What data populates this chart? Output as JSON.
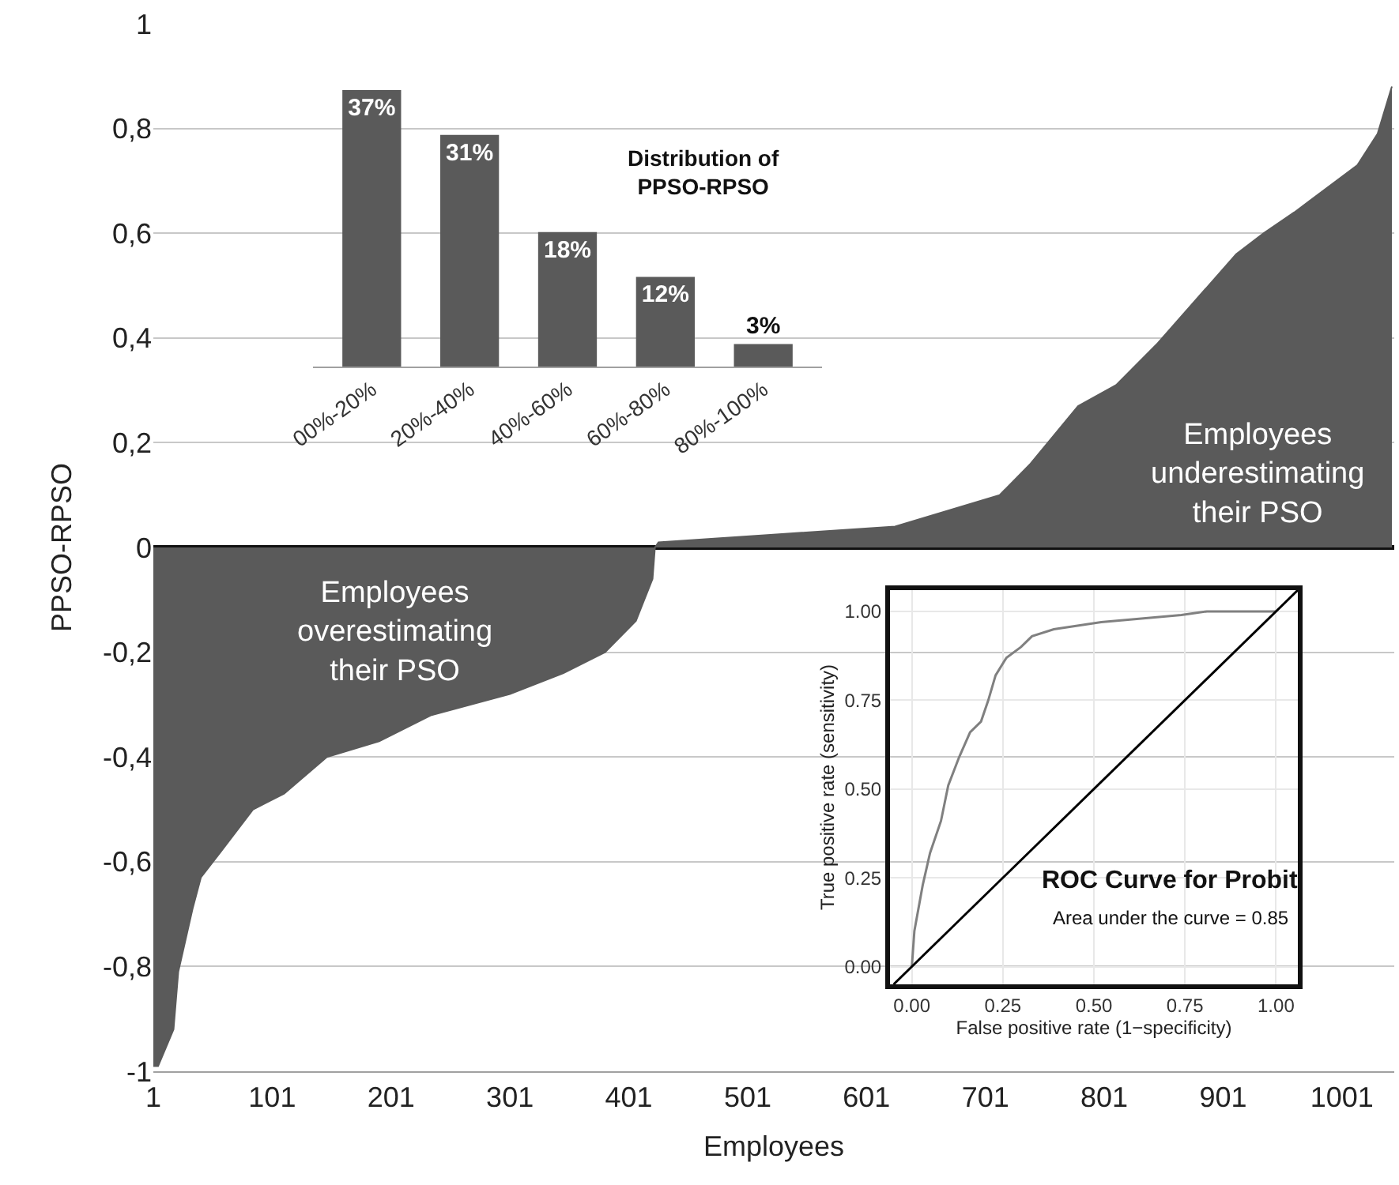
{
  "chart_data": [
    {
      "type": "area",
      "xlabel": "Employees",
      "ylabel": "PPSO-RPSO",
      "color": "#5a5a5a",
      "x": [
        1,
        5,
        18,
        22,
        34,
        41,
        58,
        85,
        111,
        147,
        191,
        235,
        301,
        346,
        381,
        407,
        421,
        423,
        426,
        525,
        625,
        713,
        739,
        779,
        811,
        846,
        912,
        935,
        961,
        1014,
        1031,
        1043
      ],
      "values": [
        -0.99,
        -0.99,
        -0.92,
        -0.81,
        -0.69,
        -0.63,
        -0.58,
        -0.5,
        -0.47,
        -0.4,
        -0.37,
        -0.32,
        -0.28,
        -0.24,
        -0.2,
        -0.14,
        -0.06,
        0,
        0.01,
        0.025,
        0.04,
        0.1,
        0.16,
        0.27,
        0.31,
        0.39,
        0.56,
        0.6,
        0.64,
        0.73,
        0.79,
        0.88
      ],
      "xlim": [
        1,
        1045
      ],
      "ylim": [
        -1,
        1
      ],
      "xticks": [
        1,
        101,
        201,
        301,
        401,
        501,
        601,
        701,
        801,
        901,
        1001
      ],
      "yticks": [
        {
          "value": -1,
          "label": "-1"
        },
        {
          "value": -0.8,
          "label": "-0,8"
        },
        {
          "value": -0.6,
          "label": "-0,6"
        },
        {
          "value": -0.4,
          "label": "-0,4"
        },
        {
          "value": -0.2,
          "label": "-0,2"
        },
        {
          "value": 0,
          "label": "0"
        },
        {
          "value": 0.2,
          "label": "0,2"
        },
        {
          "value": 0.4,
          "label": "0,4"
        },
        {
          "value": 0.6,
          "label": "0,6"
        },
        {
          "value": 0.8,
          "label": "0,8"
        },
        {
          "value": 1,
          "label": "1"
        }
      ],
      "grid": "y",
      "annotations": [
        "Employees overestimating their PSO",
        "Employees underestimating their PSO"
      ]
    },
    {
      "type": "bar",
      "title": "Distribution of PPSO-RPSO",
      "color": "#5a5a5a",
      "categories": [
        "00%-20%",
        "20%-40%",
        "40%-60%",
        "60%-80%",
        "80%-100%"
      ],
      "values": [
        37,
        31,
        18,
        12,
        3
      ],
      "value_labels": [
        "37%",
        "31%",
        "18%",
        "12%",
        "3%"
      ],
      "tick_labels": "x"
    },
    {
      "type": "line",
      "xlabel": "False positive rate (1−specificity)",
      "ylabel": "True positive rate (sensitivity)",
      "series": [
        {
          "color": "#808080",
          "x": [
            0,
            0.007,
            0.03,
            0.05,
            0.08,
            0.1,
            0.13,
            0.16,
            0.19,
            0.21,
            0.23,
            0.26,
            0.3,
            0.33,
            0.39,
            0.52,
            0.74,
            0.81,
            1.0
          ],
          "values": [
            0,
            0.1,
            0.23,
            0.32,
            0.41,
            0.51,
            0.59,
            0.66,
            0.69,
            0.75,
            0.82,
            0.87,
            0.9,
            0.93,
            0.95,
            0.97,
            0.99,
            1.0,
            1.0
          ]
        },
        {
          "color": "#000000",
          "x": [
            -0.05,
            1.06
          ],
          "values": [
            -0.05,
            1.06
          ]
        }
      ],
      "xlim": [
        -0.06,
        1.06
      ],
      "ylim": [
        -0.05,
        1.06
      ],
      "xticks": [
        {
          "value": 0,
          "label": "0.00"
        },
        {
          "value": 0.25,
          "label": "0.25"
        },
        {
          "value": 0.5,
          "label": "0.50"
        },
        {
          "value": 0.75,
          "label": "0.75"
        },
        {
          "value": 1,
          "label": "1.00"
        }
      ],
      "yticks": [
        {
          "value": 0,
          "label": "0.00"
        },
        {
          "value": 0.25,
          "label": "0.25"
        },
        {
          "value": 0.5,
          "label": "0.50"
        },
        {
          "value": 0.75,
          "label": "0.75"
        },
        {
          "value": 1,
          "label": "1.00"
        }
      ],
      "grid": true,
      "annotations": [
        "ROC Curve for Probit",
        "Area under the curve = 0.85"
      ]
    }
  ]
}
